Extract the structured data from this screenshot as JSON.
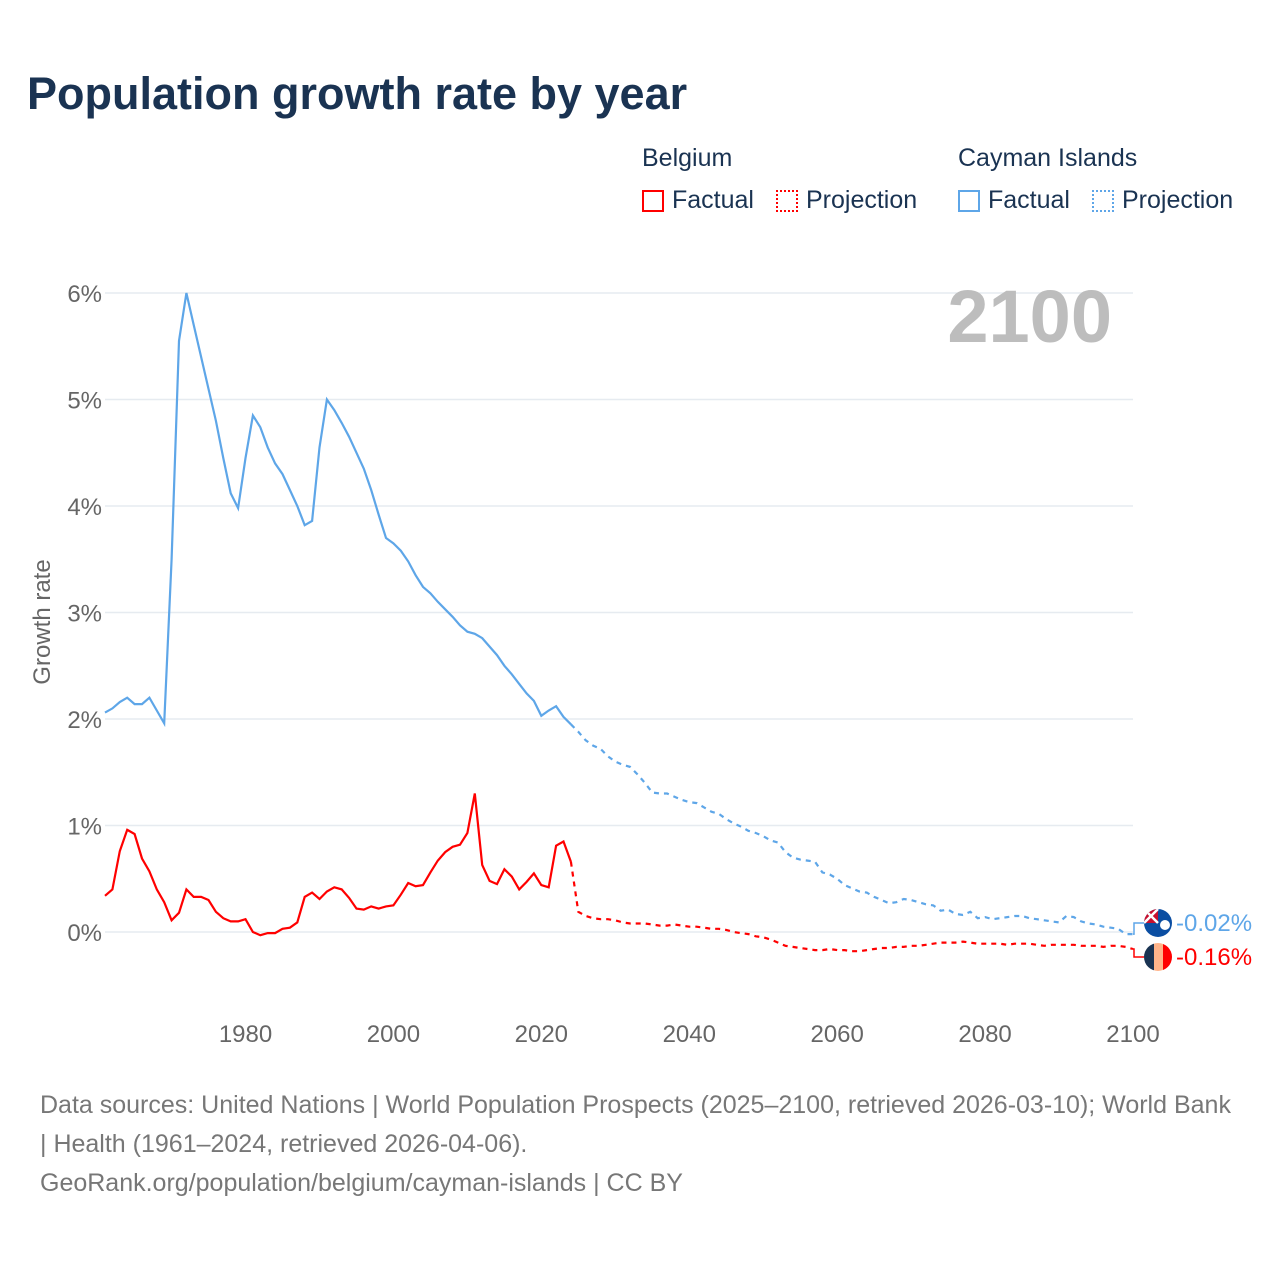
{
  "title": "Population growth rate by year",
  "legend": {
    "groups": [
      {
        "country": "Belgium",
        "factual": "Factual",
        "projection": "Projection",
        "color": "#ff0000"
      },
      {
        "country": "Cayman Islands",
        "factual": "Factual",
        "projection": "Projection",
        "color": "#5ea6e8"
      }
    ]
  },
  "chart_data": {
    "type": "line",
    "title": "Population growth rate by year",
    "xlabel": "",
    "ylabel": "Growth rate",
    "xlim": [
      1961,
      2100
    ],
    "ylim": [
      -0.5,
      6.3
    ],
    "year_label": "2100",
    "x_ticks": [
      "1980",
      "2000",
      "2020",
      "2040",
      "2060",
      "2080",
      "2100"
    ],
    "y_ticks": [
      "0%",
      "1%",
      "2%",
      "3%",
      "4%",
      "5%",
      "6%"
    ],
    "grid": true,
    "factual_years": [
      1961,
      2024
    ],
    "projection_years": [
      2025,
      2100
    ],
    "series": [
      {
        "name": "Cayman Islands",
        "color": "#5ea6e8",
        "end_label": "-0.02%",
        "flag": "cayman-islands-flag",
        "factual": [
          2.06,
          2.1,
          2.16,
          2.2,
          2.14,
          2.14,
          2.2,
          2.08,
          1.96,
          3.5,
          5.55,
          6.0,
          5.7,
          5.4,
          5.1,
          4.8,
          4.45,
          4.12,
          3.98,
          4.45,
          4.85,
          4.74,
          4.55,
          4.4,
          4.3,
          4.15,
          4.0,
          3.82,
          3.86,
          4.55,
          5.0,
          4.9,
          4.78,
          4.65,
          4.5,
          4.35,
          4.15,
          3.92,
          3.7,
          3.65,
          3.58,
          3.48,
          3.35,
          3.24,
          3.18,
          3.1,
          3.03,
          2.96,
          2.88,
          2.82,
          2.8,
          2.76,
          2.68,
          2.6,
          2.5,
          2.42,
          2.33,
          2.24,
          2.17,
          2.03,
          2.08,
          2.12,
          2.02,
          1.95
        ],
        "projection": [
          1.88,
          1.8,
          1.75,
          1.72,
          1.65,
          1.6,
          1.57,
          1.55,
          1.48,
          1.4,
          1.31,
          1.3,
          1.3,
          1.27,
          1.24,
          1.22,
          1.21,
          1.17,
          1.13,
          1.11,
          1.06,
          1.02,
          0.99,
          0.95,
          0.93,
          0.9,
          0.86,
          0.84,
          0.75,
          0.7,
          0.68,
          0.67,
          0.66,
          0.56,
          0.54,
          0.5,
          0.44,
          0.41,
          0.38,
          0.37,
          0.33,
          0.3,
          0.27,
          0.28,
          0.31,
          0.3,
          0.28,
          0.26,
          0.25,
          0.2,
          0.21,
          0.17,
          0.16,
          0.19,
          0.13,
          0.14,
          0.12,
          0.13,
          0.14,
          0.15,
          0.15,
          0.13,
          0.12,
          0.11,
          0.1,
          0.09,
          0.15,
          0.14,
          0.1,
          0.08,
          0.07,
          0.05,
          0.04,
          0.03,
          -0.02,
          -0.02
        ]
      },
      {
        "name": "Belgium",
        "color": "#ff0000",
        "end_label": "-0.16%",
        "flag": "belgium-flag",
        "factual": [
          0.34,
          0.4,
          0.76,
          0.96,
          0.92,
          0.69,
          0.57,
          0.4,
          0.28,
          0.11,
          0.18,
          0.4,
          0.33,
          0.33,
          0.3,
          0.19,
          0.13,
          0.1,
          0.1,
          0.12,
          0.0,
          -0.03,
          -0.01,
          -0.01,
          0.03,
          0.04,
          0.09,
          0.33,
          0.37,
          0.31,
          0.38,
          0.42,
          0.4,
          0.32,
          0.22,
          0.21,
          0.24,
          0.22,
          0.24,
          0.25,
          0.35,
          0.46,
          0.43,
          0.44,
          0.56,
          0.67,
          0.75,
          0.8,
          0.82,
          0.93,
          1.3,
          0.63,
          0.48,
          0.45,
          0.59,
          0.52,
          0.4,
          0.47,
          0.55,
          0.44,
          0.42,
          0.81,
          0.85,
          0.66
        ],
        "projection": [
          0.19,
          0.15,
          0.13,
          0.12,
          0.12,
          0.11,
          0.09,
          0.08,
          0.08,
          0.08,
          0.07,
          0.06,
          0.06,
          0.07,
          0.06,
          0.05,
          0.05,
          0.04,
          0.03,
          0.03,
          0.02,
          0.0,
          -0.01,
          -0.02,
          -0.04,
          -0.05,
          -0.07,
          -0.1,
          -0.13,
          -0.14,
          -0.15,
          -0.16,
          -0.17,
          -0.17,
          -0.16,
          -0.17,
          -0.17,
          -0.18,
          -0.18,
          -0.17,
          -0.16,
          -0.15,
          -0.15,
          -0.14,
          -0.14,
          -0.13,
          -0.13,
          -0.12,
          -0.11,
          -0.1,
          -0.1,
          -0.1,
          -0.09,
          -0.1,
          -0.11,
          -0.11,
          -0.11,
          -0.11,
          -0.12,
          -0.11,
          -0.11,
          -0.11,
          -0.12,
          -0.13,
          -0.12,
          -0.12,
          -0.12,
          -0.12,
          -0.13,
          -0.13,
          -0.13,
          -0.14,
          -0.13,
          -0.13,
          -0.14,
          -0.16
        ]
      }
    ]
  },
  "footer": {
    "sources": "Data sources: United Nations | World Population Prospects (2025–2100, retrieved 2026-03-10); World Bank | Health (1961–2024, retrieved 2026-04-06).",
    "attribution": "GeoRank.org/population/belgium/cayman-islands | CC BY"
  }
}
